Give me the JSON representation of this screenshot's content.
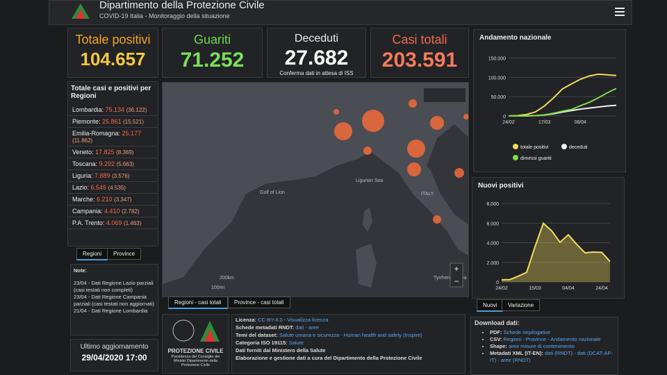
{
  "header": {
    "title": "Dipartimento della Protezione Civile",
    "subtitle": "COVID-19 Italia - Monitoraggio della situazione"
  },
  "stats": [
    {
      "label": "Totale positivi",
      "value": "104.657"
    },
    {
      "label": "Guariti",
      "value": "71.252"
    },
    {
      "label": "Deceduti",
      "value": "27.682",
      "note": "Conferma dati in attesa di ISS"
    },
    {
      "label": "Casi totali",
      "value": "203.591"
    }
  ],
  "regions": {
    "title": "Totale casi e positivi per Regioni",
    "rows": [
      [
        "Lombardia:",
        "75.134",
        "(36.122)"
      ],
      [
        "Piemonte:",
        "25.861",
        "(15.521)"
      ],
      [
        "Emilia-Romagna:",
        "25.177",
        "(11.862)"
      ],
      [
        "Veneto:",
        "17.825",
        "(8.369)"
      ],
      [
        "Toscana:",
        "9.292",
        "(5.663)"
      ],
      [
        "Liguria:",
        "7.889",
        "(3.576)"
      ],
      [
        "Lazio:",
        "6.545",
        "(4.535)"
      ],
      [
        "Marche:",
        "6.210",
        "(3.347)"
      ],
      [
        "Campania:",
        "4.410",
        "(2.782)"
      ],
      [
        "P.A. Trento:",
        "4.069",
        "(1.463)"
      ]
    ],
    "tabs": [
      "Regioni",
      "Province"
    ]
  },
  "notes": {
    "title": "Note:",
    "items": [
      "23/04 - Dati Regione Lazio parziali (casi testati non completi)",
      "23/04 - Dati Regione Campania parziali (casi testati non aggiornati)",
      "21/04 - Dati Regione Lombardia"
    ]
  },
  "update": {
    "label": "Ultimo aggiornamento",
    "value": "29/04/2020 17:00"
  },
  "map": {
    "labels": [
      "Gulf of Lion",
      "Ligurian Sea",
      "ITALY",
      "Tyrrhenian Sea"
    ],
    "scale": [
      "200km",
      "100mi"
    ],
    "tabs": [
      "Regioni - casi totali",
      "Province - casi totali"
    ]
  },
  "national_trend": {
    "type": "line",
    "title": "Andamento nazionale",
    "categories": [
      "24/02",
      null,
      null,
      null,
      "17/03",
      null,
      null,
      null,
      "08/04",
      null,
      null,
      null,
      null
    ],
    "series": [
      {
        "name": "totale positivi",
        "color": "#f2dc5d",
        "values": [
          200,
          1000,
          3900,
          10600,
          26000,
          46600,
          70000,
          83000,
          95000,
          103600,
          108000,
          106500,
          104657
        ]
      },
      {
        "name": "deceduti",
        "color": "#f2f2f2",
        "values": [
          7,
          29,
          197,
          827,
          2500,
          5500,
          10000,
          13900,
          17700,
          20500,
          23200,
          25900,
          27682
        ]
      },
      {
        "name": "dimessi guariti",
        "color": "#7ddc4a",
        "values": [
          0,
          50,
          500,
          1000,
          2900,
          7000,
          12400,
          16800,
          26500,
          35400,
          47000,
          60000,
          71252
        ]
      }
    ],
    "ylim": [
      0,
      160000
    ],
    "yticks": [
      0,
      {
        "value": 50000,
        "label": "50.000"
      },
      {
        "value": 100000,
        "label": "100.000"
      },
      {
        "value": 150000,
        "label": "150.000"
      }
    ]
  },
  "new_positives": {
    "type": "area",
    "title": "Nuovi positivi",
    "categories": [
      "24/02",
      null,
      null,
      null,
      "15/03",
      null,
      null,
      null,
      "04/04",
      null,
      null,
      null,
      "24/04",
      null
    ],
    "series": [
      {
        "name": "Nuovi positivi",
        "color": "#f2dc5d",
        "values": [
          221,
          240,
          587,
          977,
          3590,
          5986,
          5210,
          4050,
          4805,
          3836,
          2972,
          3047,
          3021,
          2086
        ]
      }
    ],
    "ylim": [
      0,
      8500
    ],
    "yticks": [
      0,
      {
        "value": 2000,
        "label": "2.000"
      },
      {
        "value": 4000,
        "label": "4.000"
      },
      {
        "value": 6000,
        "label": "6.000"
      },
      {
        "value": 8000,
        "label": "8.000"
      }
    ],
    "tabs": [
      "Nuovi",
      "Variazione"
    ]
  },
  "logo": {
    "name": "PROTEZIONE CIVILE",
    "caption": "Presidenza del Consiglio dei Ministri Dipartimento della Protezione Civile"
  },
  "license": [
    [
      "Licenza:",
      "CC-BY-4.0 - Visualizza licenza"
    ],
    [
      "Schede metadati RNDT:",
      "dati - aree"
    ],
    [
      "Temi del dataset:",
      "Salute umana e sicurezza - Human health and safety (Inspire)"
    ],
    [
      "Categoria ISO 19115:",
      "Salute"
    ],
    [
      "Dati forniti dal Ministero della Salute",
      ""
    ],
    [
      "Elaborazione e gestione dati a cura del Dipartimento della Protezione Civile",
      ""
    ]
  ],
  "download": {
    "title": "Download dati:",
    "items": [
      [
        "PDF:",
        "Schede riepilogative"
      ],
      [
        "CSV:",
        "Regioni - Province - Andamento nazionale"
      ],
      [
        "Shape:",
        "aree misure di contenimento"
      ],
      [
        "Metadati XML (IT-EN):",
        "dati (RNDT) - dati (DCAT-AP-IT) - aree (RNDT)"
      ]
    ]
  }
}
